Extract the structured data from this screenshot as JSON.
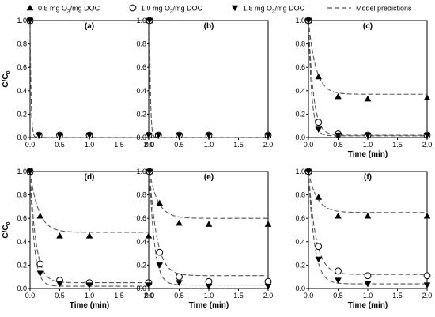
{
  "legend": {
    "items": [
      {
        "marker": "triangle-up",
        "pre": "0.5 mg O",
        "sub": "3",
        "post": "/mg DOC"
      },
      {
        "marker": "circle-open",
        "pre": "1.0 mg O",
        "sub": "3",
        "post": "/mg DOC"
      },
      {
        "marker": "triangle-down",
        "pre": "1.5 mg O",
        "sub": "3",
        "post": "/mg DOC"
      },
      {
        "marker": "dashed-line",
        "pre": "Model predictions",
        "sub": "",
        "post": ""
      }
    ]
  },
  "y_axis_label": {
    "main": "C/C",
    "sub": "0"
  },
  "colors": {
    "marker": "#000000",
    "model": "#555555"
  },
  "chart_data": [
    {
      "type": "scatter",
      "panel_label": "(a)",
      "xlabel": "",
      "xlim": [
        0,
        2
      ],
      "ylim": [
        0,
        1.0
      ],
      "xticks": [
        "0.0",
        "0.5",
        "1.0",
        "1.5",
        "2.0"
      ],
      "yticks": [
        "0.0",
        "0.2",
        "0.4",
        "0.6",
        "0.8",
        "1.0"
      ],
      "series": [
        {
          "marker": "triangle-up",
          "x": [
            0,
            0.15,
            0.5,
            1.0,
            2.0
          ],
          "y": [
            1.0,
            0.02,
            0.02,
            0.02,
            0.02
          ]
        },
        {
          "marker": "circle-open",
          "x": [
            0,
            0.15,
            0.5,
            1.0,
            2.0
          ],
          "y": [
            1.0,
            0.02,
            0.02,
            0.02,
            0.02
          ]
        },
        {
          "marker": "triangle-down",
          "x": [
            0,
            0.15,
            0.5,
            1.0,
            2.0
          ],
          "y": [
            1.0,
            0.02,
            0.02,
            0.02,
            0.02
          ]
        }
      ],
      "model": [
        {
          "plateau": 0.0,
          "k": 60
        }
      ]
    },
    {
      "type": "scatter",
      "panel_label": "(b)",
      "xlabel": "",
      "xlim": [
        0,
        2
      ],
      "ylim": [
        0,
        1.0
      ],
      "xticks": [
        "0.0",
        "0.5",
        "1.0",
        "1.5",
        "2.0"
      ],
      "yticks": [
        "0.0",
        "0.2",
        "0.4",
        "0.6",
        "0.8",
        "1.0"
      ],
      "series": [
        {
          "marker": "triangle-up",
          "x": [
            0,
            0.15,
            0.5,
            1.0,
            2.0
          ],
          "y": [
            1.0,
            0.02,
            0.02,
            0.02,
            0.02
          ]
        },
        {
          "marker": "circle-open",
          "x": [
            0,
            0.15,
            0.5,
            1.0,
            2.0
          ],
          "y": [
            1.0,
            0.02,
            0.02,
            0.02,
            0.02
          ]
        },
        {
          "marker": "triangle-down",
          "x": [
            0,
            0.15,
            0.5,
            1.0,
            2.0
          ],
          "y": [
            1.0,
            0.02,
            0.02,
            0.02,
            0.02
          ]
        }
      ],
      "model": [
        {
          "plateau": 0.0,
          "k": 60
        }
      ]
    },
    {
      "type": "scatter",
      "panel_label": "(c)",
      "xlabel": "Time (min)",
      "xlim": [
        0,
        2
      ],
      "ylim": [
        0,
        1.0
      ],
      "xticks": [
        "0.0",
        "0.5",
        "1.0",
        "1.5",
        "2.0"
      ],
      "yticks": [
        "0.0",
        "0.2",
        "0.4",
        "0.6",
        "0.8",
        "1.0"
      ],
      "series": [
        {
          "marker": "triangle-up",
          "x": [
            0,
            0.17,
            0.5,
            1.0,
            2.0
          ],
          "y": [
            1.0,
            0.52,
            0.35,
            0.33,
            0.34
          ]
        },
        {
          "marker": "circle-open",
          "x": [
            0,
            0.17,
            0.5,
            1.0,
            2.0
          ],
          "y": [
            1.0,
            0.13,
            0.03,
            0.02,
            0.02
          ]
        },
        {
          "marker": "triangle-down",
          "x": [
            0,
            0.17,
            0.5,
            1.0,
            2.0
          ],
          "y": [
            1.0,
            0.07,
            0.02,
            0.02,
            0.02
          ]
        }
      ],
      "model": [
        {
          "plateau": 0.37,
          "k": 8
        },
        {
          "plateau": 0.02,
          "k": 12
        },
        {
          "plateau": 0.015,
          "k": 18
        }
      ]
    },
    {
      "type": "scatter",
      "panel_label": "(d)",
      "xlabel": "Time (min)",
      "xlim": [
        0,
        2
      ],
      "ylim": [
        0,
        1.0
      ],
      "xticks": [
        "0.0",
        "0.5",
        "1.0",
        "1.5",
        "2.0"
      ],
      "yticks": [
        "0.0",
        "0.2",
        "0.4",
        "0.6",
        "0.8",
        "1.0"
      ],
      "series": [
        {
          "marker": "triangle-up",
          "x": [
            0,
            0.17,
            0.5,
            1.0,
            2.0
          ],
          "y": [
            1.0,
            0.62,
            0.45,
            0.45,
            0.45
          ]
        },
        {
          "marker": "circle-open",
          "x": [
            0,
            0.17,
            0.5,
            1.0,
            2.0
          ],
          "y": [
            1.0,
            0.21,
            0.07,
            0.05,
            0.05
          ]
        },
        {
          "marker": "triangle-down",
          "x": [
            0,
            0.17,
            0.5,
            1.0,
            2.0
          ],
          "y": [
            1.0,
            0.13,
            0.04,
            0.03,
            0.03
          ]
        }
      ],
      "model": [
        {
          "plateau": 0.48,
          "k": 7
        },
        {
          "plateau": 0.05,
          "k": 10
        },
        {
          "plateau": 0.02,
          "k": 14
        }
      ]
    },
    {
      "type": "scatter",
      "panel_label": "(e)",
      "xlabel": "Time (min)",
      "xlim": [
        0,
        2
      ],
      "ylim": [
        0,
        1.0
      ],
      "xticks": [
        "0.0",
        "0.5",
        "1.0",
        "1.5",
        "2.0"
      ],
      "yticks": [
        "0.0",
        "0.2",
        "0.4",
        "0.6",
        "0.8",
        "1.0"
      ],
      "series": [
        {
          "marker": "triangle-up",
          "x": [
            0,
            0.17,
            0.5,
            1.0,
            2.0
          ],
          "y": [
            1.0,
            0.73,
            0.56,
            0.55,
            0.55
          ]
        },
        {
          "marker": "circle-open",
          "x": [
            0,
            0.17,
            0.5,
            1.0,
            2.0
          ],
          "y": [
            1.0,
            0.31,
            0.1,
            0.06,
            0.06
          ]
        },
        {
          "marker": "triangle-down",
          "x": [
            0,
            0.17,
            0.5,
            1.0,
            2.0
          ],
          "y": [
            1.0,
            0.2,
            0.05,
            0.02,
            0.02
          ]
        }
      ],
      "model": [
        {
          "plateau": 0.6,
          "k": 7
        },
        {
          "plateau": 0.11,
          "k": 8
        },
        {
          "plateau": 0.03,
          "k": 12
        }
      ]
    },
    {
      "type": "scatter",
      "panel_label": "(f)",
      "xlabel": "Time (min)",
      "xlim": [
        0,
        2
      ],
      "ylim": [
        0,
        1.0
      ],
      "xticks": [
        "0.0",
        "0.5",
        "1.0",
        "1.5",
        "2.0"
      ],
      "yticks": [
        "0.0",
        "0.2",
        "0.4",
        "0.6",
        "0.8",
        "1.0"
      ],
      "series": [
        {
          "marker": "triangle-up",
          "x": [
            0,
            0.17,
            0.5,
            1.0,
            2.0
          ],
          "y": [
            1.0,
            0.78,
            0.62,
            0.62,
            0.62
          ]
        },
        {
          "marker": "circle-open",
          "x": [
            0,
            0.17,
            0.5,
            1.0,
            2.0
          ],
          "y": [
            1.0,
            0.36,
            0.15,
            0.11,
            0.11
          ]
        },
        {
          "marker": "triangle-down",
          "x": [
            0,
            0.17,
            0.5,
            1.0,
            2.0
          ],
          "y": [
            1.0,
            0.25,
            0.07,
            0.04,
            0.03
          ]
        }
      ],
      "model": [
        {
          "plateau": 0.65,
          "k": 7
        },
        {
          "plateau": 0.12,
          "k": 8
        },
        {
          "plateau": 0.04,
          "k": 10
        }
      ]
    }
  ]
}
